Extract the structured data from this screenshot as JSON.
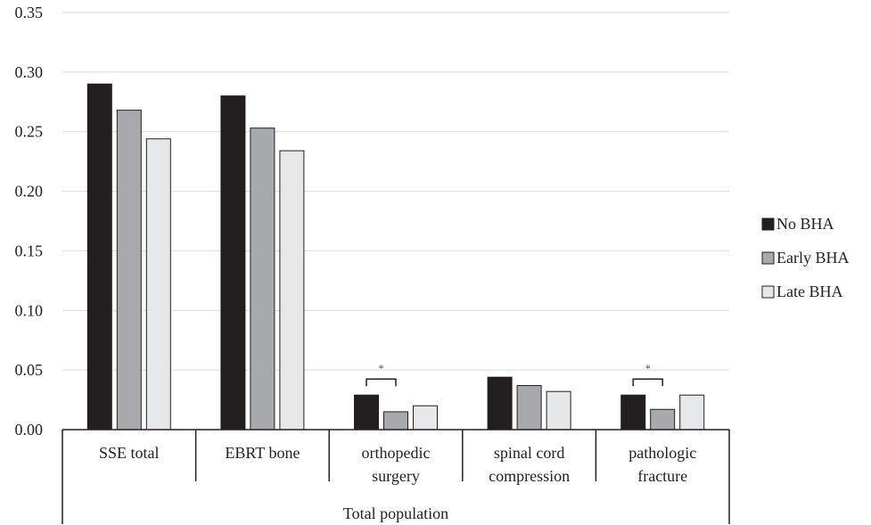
{
  "chart_data": {
    "type": "bar",
    "categories": [
      [
        "SSE total"
      ],
      [
        "EBRT bone"
      ],
      [
        "orthopedic",
        "surgery"
      ],
      [
        "spinal cord",
        "compression"
      ],
      [
        "pathologic",
        "fracture"
      ]
    ],
    "group_label": "Total population",
    "series": [
      {
        "name": "No BHA",
        "values": [
          0.29,
          0.28,
          0.029,
          0.044,
          0.029
        ],
        "color": "#231f20"
      },
      {
        "name": "Early BHA",
        "values": [
          0.268,
          0.253,
          0.015,
          0.037,
          0.017
        ],
        "color": "#a7a9ac"
      },
      {
        "name": "Late BHA",
        "values": [
          0.244,
          0.234,
          0.02,
          0.032,
          0.029
        ],
        "color": "#e6e7e8"
      }
    ],
    "significance": [
      {
        "category_index": 2,
        "label": "*"
      },
      {
        "category_index": 4,
        "label": "*"
      }
    ],
    "ylim": [
      0,
      0.35
    ],
    "yticks": [
      "0.00",
      "0.05",
      "0.10",
      "0.15",
      "0.20",
      "0.25",
      "0.30",
      "0.35"
    ],
    "grid": true,
    "legend_position": "right"
  }
}
